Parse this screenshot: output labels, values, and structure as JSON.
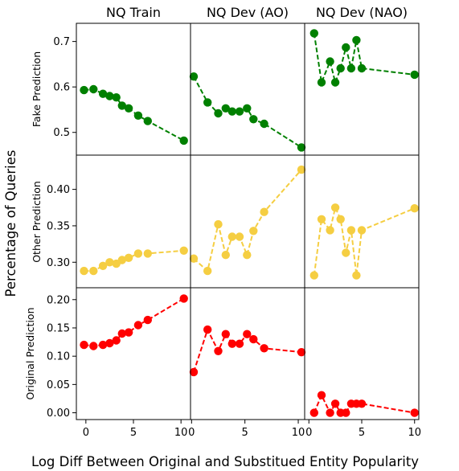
{
  "chart_data": {
    "type": "line",
    "shared_xlabel": "Log Diff Between Original and Substitued Entity Popularity",
    "shared_ylabel": "Percentage of Queries",
    "columns": [
      "NQ Train",
      "NQ Dev (AO)",
      "NQ Dev (NAO)"
    ],
    "rows": [
      {
        "ylabel": "Fake Prediction",
        "color": "#008000",
        "ylim": [
          0.45,
          0.74
        ],
        "yticks": [
          0.5,
          0.6,
          0.7
        ],
        "ytick_labels": [
          "0.5",
          "0.6",
          "0.7"
        ],
        "panels": [
          {
            "x": [
              -0.2,
              0.8,
              1.8,
              2.5,
              3.2,
              3.8,
              4.5,
              5.5,
              6.5,
              10.3
            ],
            "y": [
              0.593,
              0.595,
              0.585,
              0.58,
              0.577,
              0.559,
              0.553,
              0.537,
              0.525,
              0.482
            ]
          },
          {
            "x": [
              0.2,
              1.5,
              2.5,
              3.2,
              3.8,
              4.5,
              5.2,
              5.8,
              6.8,
              10.3
            ],
            "y": [
              0.623,
              0.566,
              0.542,
              0.553,
              0.546,
              0.546,
              0.553,
              0.529,
              0.519,
              0.467
            ]
          },
          {
            "x": [
              0.5,
              1.2,
              2.0,
              2.5,
              3.0,
              3.5,
              4.0,
              4.5,
              5.0,
              10.0
            ],
            "y": [
              0.718,
              0.61,
              0.656,
              0.61,
              0.641,
              0.687,
              0.641,
              0.703,
              0.641,
              0.627
            ]
          }
        ]
      },
      {
        "ylabel": "Other Prediction",
        "color": "#F5CE42",
        "ylim": [
          0.265,
          0.447
        ],
        "yticks": [
          0.3,
          0.35,
          0.4
        ],
        "ytick_labels": [
          "0.30",
          "0.35",
          "0.40"
        ],
        "panels": [
          {
            "x": [
              -0.2,
              0.8,
              1.8,
              2.5,
              3.2,
              3.8,
              4.5,
              5.5,
              6.5,
              10.3
            ],
            "y": [
              0.288,
              0.288,
              0.295,
              0.3,
              0.298,
              0.303,
              0.306,
              0.312,
              0.312,
              0.316
            ]
          },
          {
            "x": [
              0.2,
              1.5,
              2.5,
              3.2,
              3.8,
              4.5,
              5.2,
              5.8,
              6.8,
              10.3
            ],
            "y": [
              0.305,
              0.288,
              0.352,
              0.31,
              0.335,
              0.335,
              0.31,
              0.343,
              0.369,
              0.427
            ]
          },
          {
            "x": [
              0.5,
              1.2,
              2.0,
              2.5,
              3.0,
              3.5,
              4.0,
              4.5,
              5.0,
              10.0
            ],
            "y": [
              0.282,
              0.359,
              0.344,
              0.375,
              0.359,
              0.313,
              0.344,
              0.282,
              0.344,
              0.374
            ]
          }
        ]
      },
      {
        "ylabel": "Original Prediction",
        "color": "#FF0000",
        "ylim": [
          -0.012,
          0.221
        ],
        "yticks": [
          0.0,
          0.05,
          0.1,
          0.15,
          0.2
        ],
        "ytick_labels": [
          "0.00",
          "0.05",
          "0.10",
          "0.15",
          "0.20"
        ],
        "panels": [
          {
            "x": [
              -0.2,
              0.8,
              1.8,
              2.5,
              3.2,
              3.8,
              4.5,
              5.5,
              6.5,
              10.3
            ],
            "y": [
              0.12,
              0.118,
              0.12,
              0.123,
              0.128,
              0.14,
              0.142,
              0.155,
              0.164,
              0.202
            ]
          },
          {
            "x": [
              0.2,
              1.5,
              2.5,
              3.2,
              3.8,
              4.5,
              5.2,
              5.8,
              6.8,
              10.3
            ],
            "y": [
              0.072,
              0.147,
              0.109,
              0.139,
              0.122,
              0.122,
              0.139,
              0.13,
              0.114,
              0.107
            ]
          },
          {
            "x": [
              0.5,
              1.2,
              2.0,
              2.5,
              3.0,
              3.5,
              4.0,
              4.5,
              5.0,
              10.0
            ],
            "y": [
              0.0,
              0.031,
              0.0,
              0.016,
              0.0,
              0.0,
              0.016,
              0.016,
              0.016,
              0.0
            ]
          }
        ]
      }
    ],
    "xlims": [
      [
        -1.0,
        11.0
      ],
      [
        -0.1,
        10.6
      ],
      [
        -0.4,
        10.4
      ]
    ],
    "xticks": [
      0,
      5,
      10
    ],
    "xtick_labels": [
      "0",
      "5",
      "10"
    ],
    "grid": false,
    "marker": "circle",
    "linestyle": "dashed"
  }
}
